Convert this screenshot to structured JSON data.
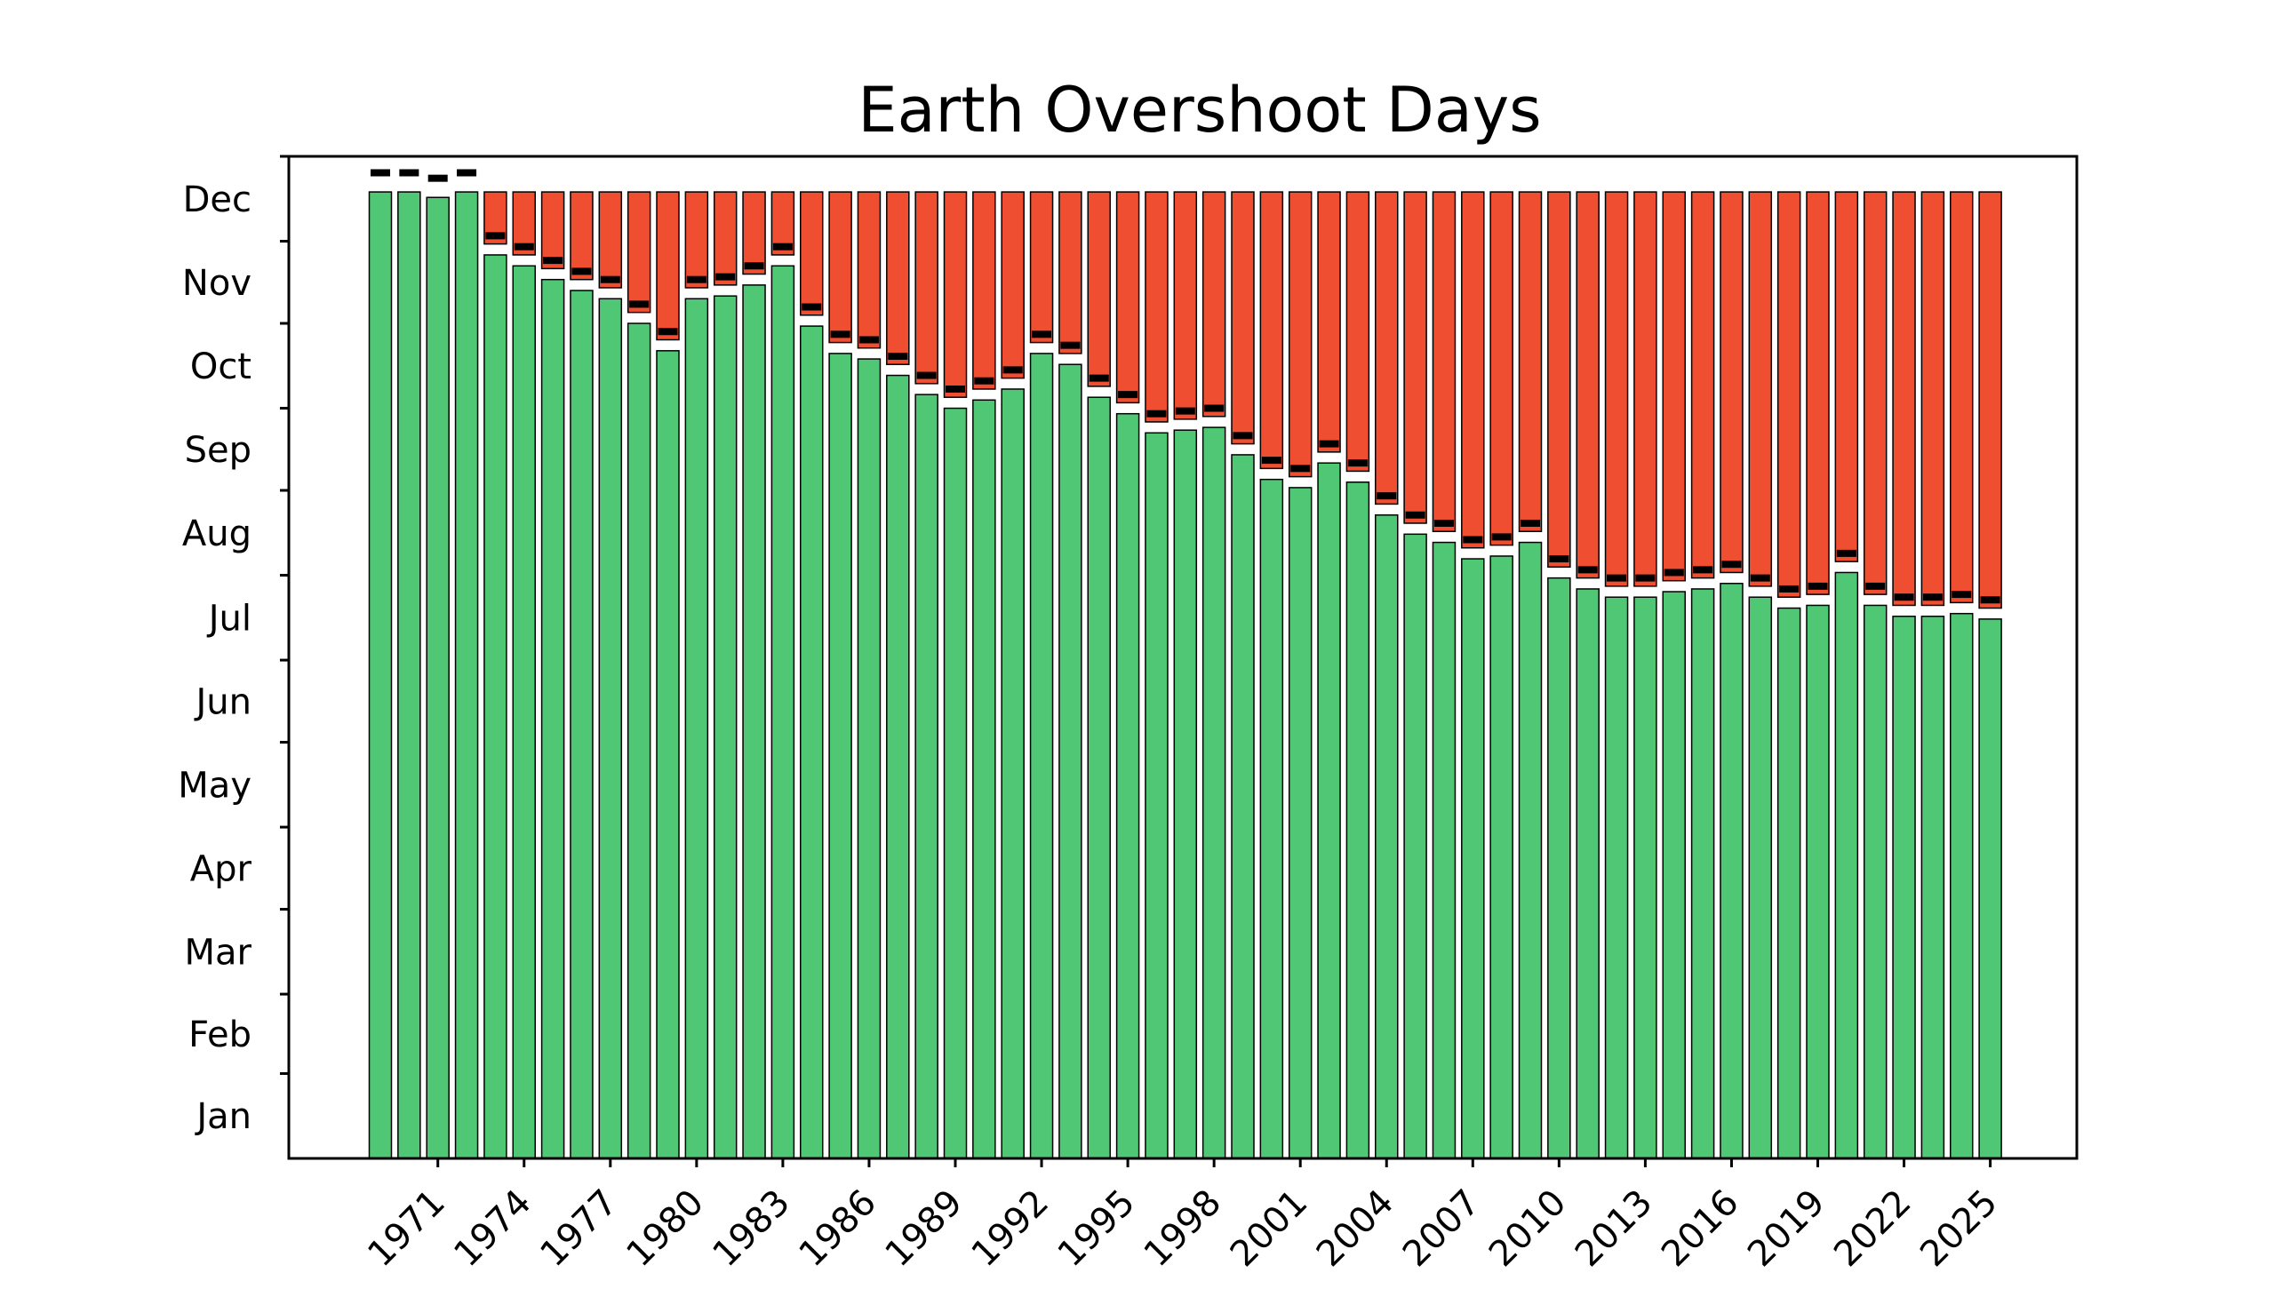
{
  "chart_data": {
    "type": "bar",
    "title": "Earth Overshoot Days",
    "xlabel": "",
    "ylabel": "",
    "stacked": true,
    "x": [
      1969,
      1970,
      1971,
      1972,
      1973,
      1974,
      1975,
      1976,
      1977,
      1978,
      1979,
      1980,
      1981,
      1982,
      1983,
      1984,
      1985,
      1986,
      1987,
      1988,
      1989,
      1990,
      1991,
      1992,
      1993,
      1994,
      1995,
      1996,
      1997,
      1998,
      1999,
      2000,
      2001,
      2002,
      2003,
      2004,
      2005,
      2006,
      2007,
      2008,
      2009,
      2010,
      2011,
      2012,
      2013,
      2014,
      2015,
      2016,
      2017,
      2018,
      2019,
      2020,
      2021,
      2022,
      2023,
      2024,
      2025
    ],
    "x_tick_labels": [
      "1971",
      "1974",
      "1977",
      "1980",
      "1983",
      "1986",
      "1989",
      "1992",
      "1995",
      "1998",
      "2001",
      "2004",
      "2007",
      "2010",
      "2013",
      "2016",
      "2019",
      "2022",
      "2025"
    ],
    "y_tick_labels": [
      "Jan",
      "Feb",
      "Mar",
      "Apr",
      "May",
      "Jun",
      "Jul",
      "Aug",
      "Sep",
      "Oct",
      "Nov",
      "Dec"
    ],
    "ylim_days": [
      0,
      366
    ],
    "overshoot_day_of_year": [
      353,
      353,
      351,
      353,
      330,
      326,
      321,
      317,
      314,
      305,
      295,
      314,
      315,
      319,
      326,
      304,
      294,
      292,
      286,
      279,
      274,
      277,
      281,
      294,
      290,
      278,
      272,
      265,
      266,
      267,
      257,
      248,
      245,
      254,
      247,
      235,
      228,
      225,
      219,
      220,
      225,
      212,
      208,
      205,
      205,
      207,
      208,
      210,
      205,
      201,
      202,
      214,
      202,
      198,
      198,
      199,
      197
    ],
    "deficit_days": [
      0,
      0,
      2,
      0,
      23,
      27,
      32,
      36,
      39,
      48,
      58,
      39,
      38,
      34,
      27,
      49,
      59,
      61,
      67,
      74,
      79,
      76,
      72,
      59,
      63,
      75,
      81,
      88,
      87,
      86,
      96,
      105,
      108,
      99,
      106,
      118,
      125,
      128,
      134,
      133,
      128,
      141,
      145,
      148,
      148,
      146,
      145,
      143,
      148,
      152,
      151,
      139,
      151,
      155,
      155,
      154,
      156
    ],
    "series": [
      {
        "values_key": "overshoot_day_of_year",
        "color": "#4fc774"
      },
      {
        "values_key": "deficit_days",
        "color": "#f04e30"
      }
    ],
    "marker_color": "#000000",
    "grid": false,
    "legend": "none"
  }
}
